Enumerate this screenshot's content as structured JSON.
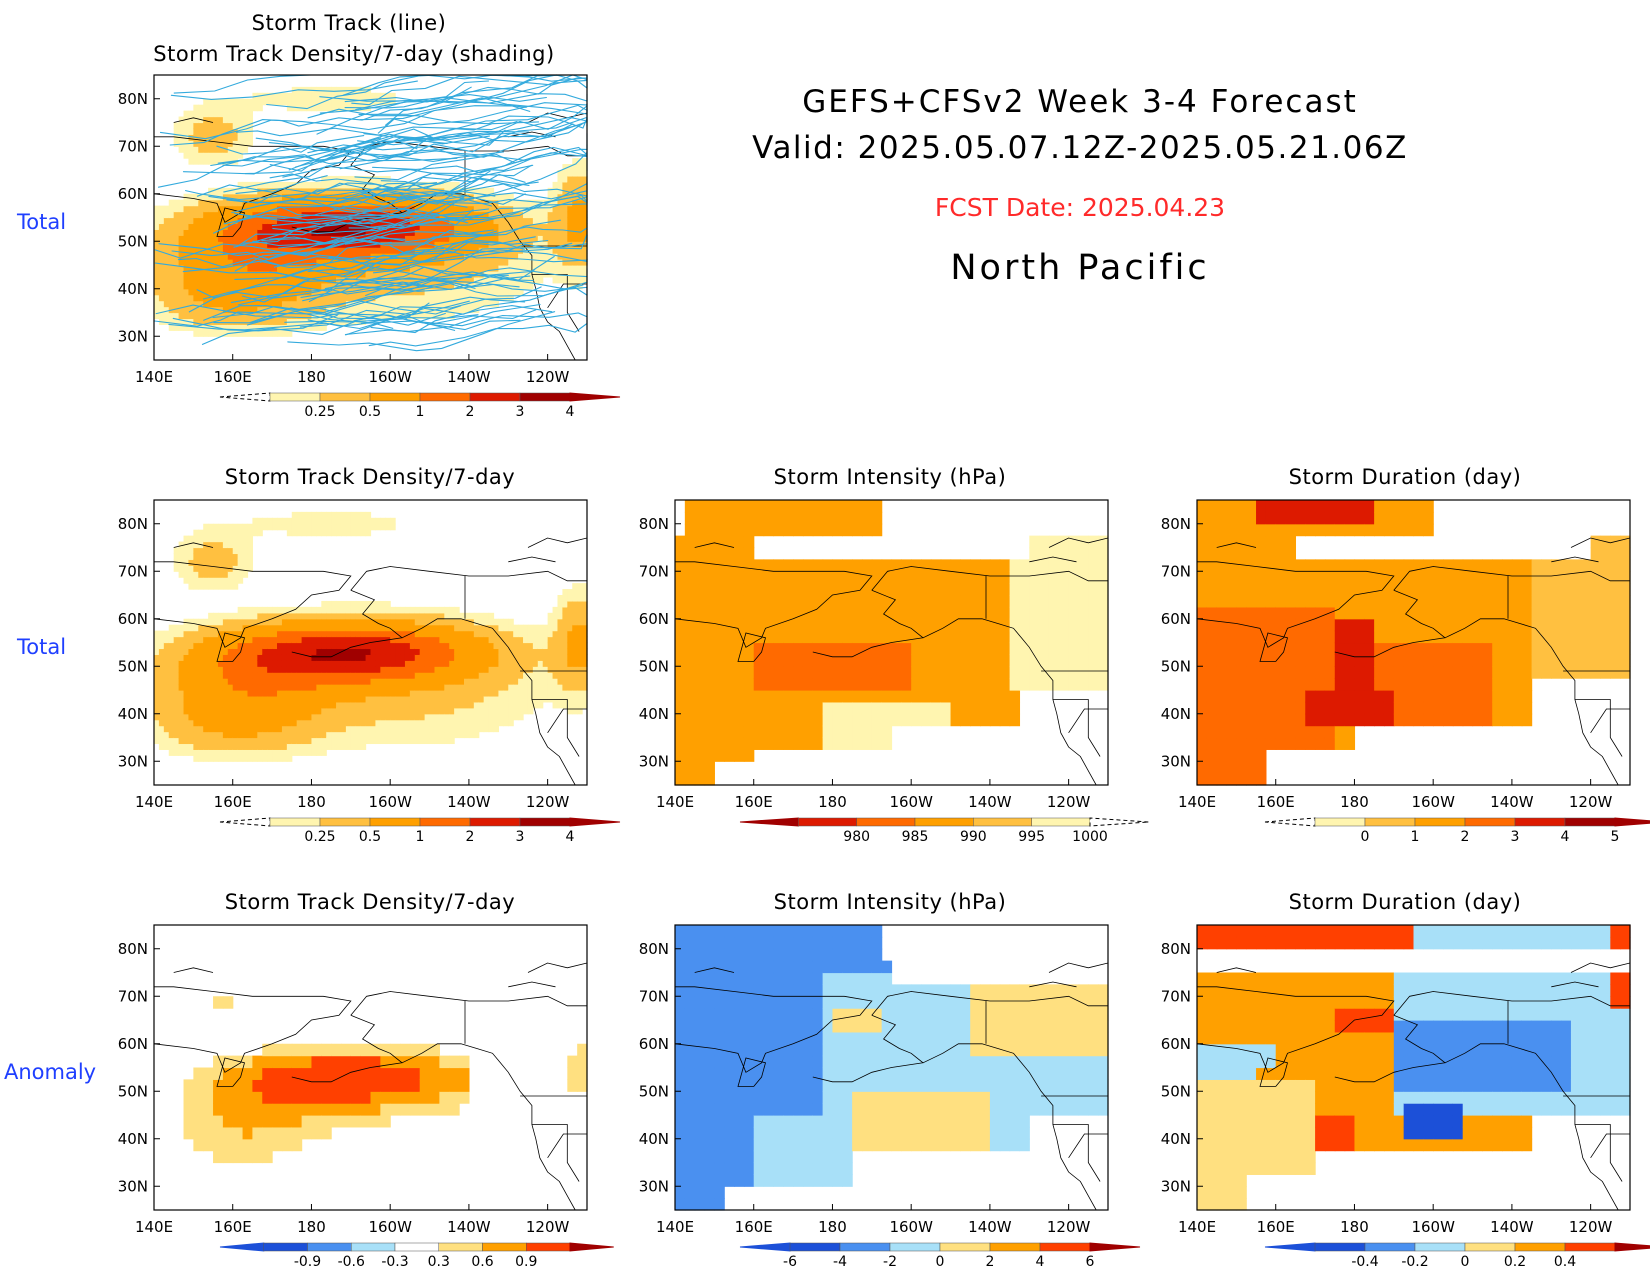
{
  "header": {
    "line1": "GEFS+CFSv2 Week 3-4 Forecast",
    "line2": "Valid: 2025.05.07.12Z-2025.05.21.06Z",
    "fcst_date": "FCST Date: 2025.04.23",
    "region": "North Pacific"
  },
  "row_labels": {
    "row0": "Total",
    "row1": "Total",
    "row2": "Anomaly"
  },
  "panels": {
    "top_title1": "Storm Track (line)",
    "top_title2": "Storm Track Density/7-day (shading)",
    "density_title": "Storm Track Density/7-day",
    "intensity_title": "Storm Intensity (hPa)",
    "duration_title": "Storm Duration (day)"
  },
  "colors": {
    "track_line": "#33aadd",
    "total_positive": [
      "#ffffff",
      "#fff5b0",
      "#ffc040",
      "#ffa000",
      "#ff6a00",
      "#dd1a00",
      "#a00000"
    ],
    "anomaly": [
      "#1c50d8",
      "#4a90f0",
      "#a8e0f8",
      "#ffffff",
      "#ffe080",
      "#ffa000",
      "#ff4000",
      "#a00000"
    ]
  },
  "chart_data": [
    {
      "type": "heatmap",
      "title": "Storm Track (line) / Storm Track Density/7-day (shading)",
      "x_ticks": [
        "140E",
        "160E",
        "180",
        "160W",
        "140W",
        "120W"
      ],
      "y_ticks": [
        "80N",
        "70N",
        "60N",
        "50N",
        "40N",
        "30N"
      ],
      "lon_range": [
        140,
        250
      ],
      "lat_range": [
        25,
        85
      ],
      "colorbar": [
        "0.25",
        "0.5",
        "1",
        "2",
        "3",
        "4"
      ],
      "max_center": {
        "lon": 190,
        "lat": 54,
        "value": 4
      }
    },
    {
      "type": "heatmap",
      "title": "Storm Track Density/7-day",
      "x_ticks": [
        "140E",
        "160E",
        "180",
        "160W",
        "140W",
        "120W"
      ],
      "y_ticks": [
        "80N",
        "70N",
        "60N",
        "50N",
        "40N",
        "30N"
      ],
      "colorbar": [
        "0.25",
        "0.5",
        "1",
        "2",
        "3",
        "4"
      ],
      "max_center": {
        "lon": 190,
        "lat": 54,
        "value": 3.5
      }
    },
    {
      "type": "heatmap",
      "title": "Storm Intensity (hPa)",
      "x_ticks": [
        "140E",
        "160E",
        "180",
        "160W",
        "140W",
        "120W"
      ],
      "y_ticks": [
        "80N",
        "70N",
        "60N",
        "50N",
        "40N",
        "30N"
      ],
      "colorbar": [
        "980",
        "985",
        "990",
        "995",
        "1000"
      ]
    },
    {
      "type": "heatmap",
      "title": "Storm Duration (day)",
      "x_ticks": [
        "140E",
        "160E",
        "180",
        "160W",
        "140W",
        "120W"
      ],
      "y_ticks": [
        "80N",
        "70N",
        "60N",
        "50N",
        "40N",
        "30N"
      ],
      "colorbar": [
        "0",
        "1",
        "2",
        "3",
        "4",
        "5"
      ]
    },
    {
      "type": "heatmap",
      "title": "Storm Track Density/7-day",
      "x_ticks": [
        "140E",
        "160E",
        "180",
        "160W",
        "140W",
        "120W"
      ],
      "y_ticks": [
        "80N",
        "70N",
        "60N",
        "50N",
        "40N",
        "30N"
      ],
      "colorbar": [
        "-0.9",
        "-0.6",
        "-0.3",
        "0.3",
        "0.6",
        "0.9"
      ]
    },
    {
      "type": "heatmap",
      "title": "Storm Intensity (hPa)",
      "x_ticks": [
        "140E",
        "160E",
        "180",
        "160W",
        "140W",
        "120W"
      ],
      "y_ticks": [
        "80N",
        "70N",
        "60N",
        "50N",
        "40N",
        "30N"
      ],
      "colorbar": [
        "-6",
        "-4",
        "-2",
        "0",
        "2",
        "4",
        "6"
      ]
    },
    {
      "type": "heatmap",
      "title": "Storm Duration (day)",
      "x_ticks": [
        "140E",
        "160E",
        "180",
        "160W",
        "140W",
        "120W"
      ],
      "y_ticks": [
        "80N",
        "70N",
        "60N",
        "50N",
        "40N",
        "30N"
      ],
      "colorbar": [
        "-0.4",
        "-0.2",
        "0",
        "0.2",
        "0.4"
      ]
    }
  ]
}
